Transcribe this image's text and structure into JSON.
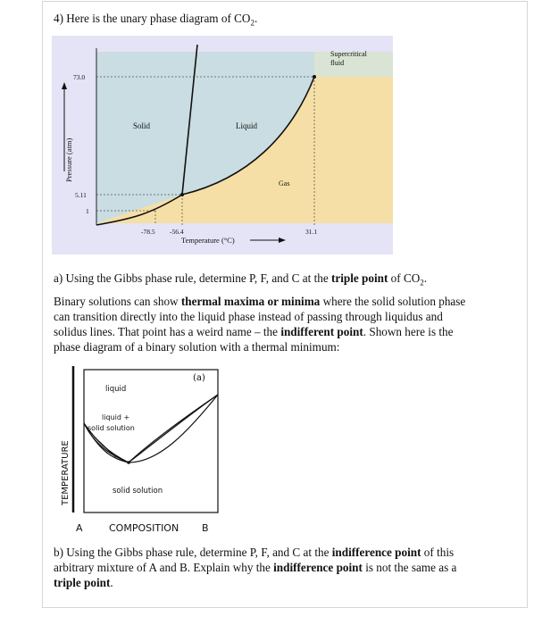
{
  "question4": {
    "title": "4) Here is the unary phase diagram of CO",
    "title_sub": "2",
    "title_end": "."
  },
  "co2_diagram": {
    "regions": {
      "solid": "Solid",
      "liquid": "Liquid",
      "gas": "Gas",
      "supercritical": "Supercritical fluid"
    },
    "ylabel": "Pressure (atm)",
    "xlabel": "Temperature (°C)",
    "pressure_ticks": [
      "73.0",
      "5.11",
      "1"
    ],
    "temperature_ticks": [
      "-78.5",
      "-56.4",
      "31.1"
    ],
    "colors": {
      "solid": "#c9dde2",
      "liquid": "#c9dde2",
      "gas": "#f5dfa6",
      "background": "#e5e3f6"
    }
  },
  "part_a": {
    "q_pre": "a) Using the Gibbs phase rule, determine P, F, and C at the ",
    "q_bold": "triple point",
    "q_post": " of CO",
    "q_sub": "2",
    "q_end": ".",
    "p1_pre": "Binary solutions can show ",
    "p1_bold": "thermal maxima or minima",
    "p1_post": " where the solid solution phase",
    "p2": "can transition directly into the liquid phase instead of passing through liquidus and",
    "p3_pre": "solidus lines. That point has a weird name – the ",
    "p3_bold": "indifferent point",
    "p3_post": ". Shown here is the",
    "p4": "phase diagram of a binary solution with a thermal minimum:"
  },
  "binary_diagram": {
    "panel_label": "(a)",
    "liquid": "liquid",
    "two_phase_1": "liquid +",
    "two_phase_2": "solid  solution",
    "solid_solution": "solid  solution",
    "ylabel": "TEMPERATURE",
    "x_left": "A",
    "x_title": "COMPOSITION",
    "x_right": "B"
  },
  "part_b": {
    "l1_pre": "b) Using the Gibbs phase rule, determine P, F, and C at the ",
    "l1_bold": "indifference point",
    "l1_post": " of this",
    "l2_pre": "arbitrary mixture of A and B. Explain why the ",
    "l2_bold": "indifference point",
    "l2_post": " is not the same as a",
    "l3_bold": "triple point",
    "l3_end": "."
  }
}
